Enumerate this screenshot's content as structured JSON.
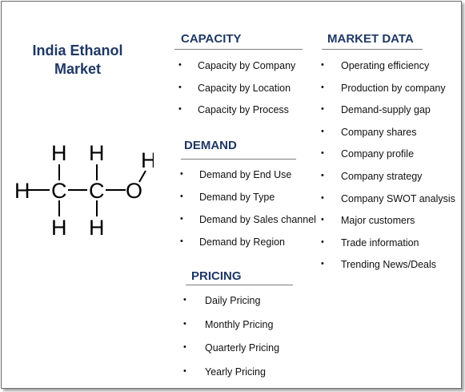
{
  "title_lines": [
    "India Ethanol",
    "Market"
  ],
  "molecule": {
    "atoms": {
      "h": "H",
      "c": "C",
      "o": "O"
    }
  },
  "sections": {
    "capacity": {
      "heading": "CAPACITY",
      "items": [
        "Capacity by Company",
        "Capacity by Location",
        "Capacity by Process"
      ]
    },
    "demand": {
      "heading": "DEMAND",
      "items": [
        "Demand by End Use",
        "Demand by Type",
        "Demand by Sales channel",
        "Demand by Region"
      ]
    },
    "pricing": {
      "heading": "PRICING",
      "items": [
        "Daily Pricing",
        "Monthly Pricing",
        "Quarterly Pricing",
        "Yearly Pricing"
      ]
    },
    "market_data": {
      "heading": "MARKET DATA",
      "items": [
        "Operating efficiency",
        "Production by company",
        "Demand-supply gap",
        "Company shares",
        "Company profile",
        "Company strategy",
        "Company SWOT analysis",
        "Major customers",
        "Trade information",
        "Trending News/Deals"
      ]
    }
  },
  "bullet_char": "•",
  "colors": {
    "heading": "#1f3864",
    "text": "#111111",
    "rule": "#7f7f7f",
    "border": "#6b6b6b"
  }
}
